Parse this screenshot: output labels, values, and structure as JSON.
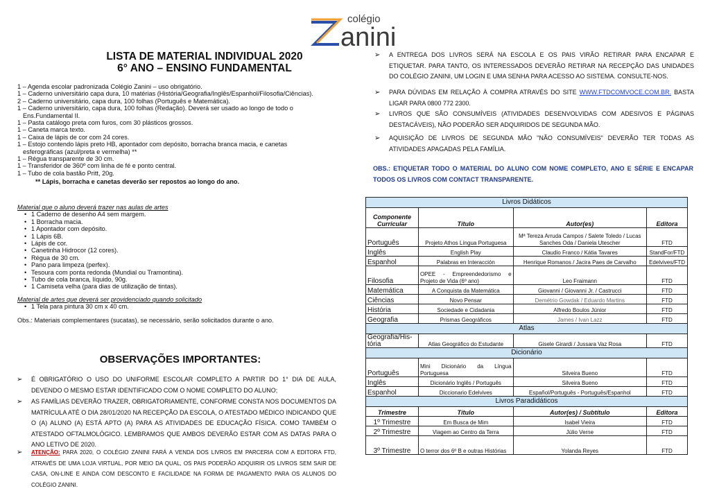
{
  "logo": {
    "top": "colégio",
    "main": "zanini",
    "colors": {
      "orange": "#f0a030",
      "blue": "#2a4fa8",
      "text": "#3a3a3a"
    }
  },
  "header": {
    "title1": "LISTA DE MATERIAL INDIVIDUAL 2020",
    "title2": "6° ANO – ENSINO FUNDAMENTAL"
  },
  "materials": [
    "1 – Agenda escolar padronizada Colégio Zanini – uso obrigatório.",
    "1 – Caderno universitário capa dura, 10 matérias (História/Geografia/Inglês/Espanhol/Filosofia/Ciências).",
    "2 – Caderno universitário, capa dura, 100 folhas (Português e Matemática).",
    "1 – Caderno universitário, capa dura, 100 folhas (Redação). Deverá ser usado ao longo de todo o",
    "Ens.Fundamental II.",
    "1 – Pasta catálogo preta com furos, com 30 plásticos grossos.",
    "1 – Caneta marca texto.",
    "1 – Caixa de lápis de cor com 24 cores.",
    "1 – Estojo contendo lápis preto HB, apontador com depósito, borracha branca macia, e canetas",
    "esferográficas (azul/preta e vermelha) **",
    "1 – Régua transparente de 30 cm.",
    "1 – Transferidor de 360º com linha de fé e ponto central.",
    "1 – Tubo de cola bastão Pritt, 20g."
  ],
  "materials_note": "** Lápis, borracha e canetas deverão ser repostos ao longo do ano.",
  "arts": {
    "title": "Material que o aluno deverá trazer nas aulas de artes",
    "items": [
      "1 Caderno de desenho A4 sem margem.",
      "1 Borracha macia.",
      "1 Apontador com depósito.",
      "1 Lápis 6B.",
      "Lápis de cor.",
      "Canetinha Hidrocor (12 cores).",
      "Régua de 30 cm.",
      "Pano para limpeza (perfex).",
      "Tesoura com ponta redonda (Mundial ou Tramontina).",
      "Tubo de cola branca, líquido, 90g.",
      "1 Camiseta velha (para dias de utilização de tintas)."
    ],
    "title2": "Material de artes que deverá ser providenciado quando solicitado",
    "items2": [
      "1 Tela para pintura 30 cm x 40 cm."
    ],
    "obs": "Obs.: Materiais complementares (sucatas), se necessário, serão solicitados durante o ano."
  },
  "observations": {
    "title": "OBSERVAÇÕES IMPORTANTES:",
    "items": [
      "É obrigatório o uso do uniforme escolar completo a partir do 1° dia de aula, devendo o mesmo estar identificado com o nome completo do aluno;",
      "As famílias deverão trazer, obrigatoriamente, conforme consta nos documentos da matrícula até o dia 28/01/2020 na recepção da Escola, o atestado médico indicando que o (a) aluno (a) está apto (a) para as atividades de Educação Física. Como também o atestado oftalmológico. Lembramos que ambos deverão estar com as datas para o ano letivo de 2020."
    ],
    "attention_label": "Atenção:",
    "attention_text": " Para 2020, o Colégio Zanini fará a venda dos livros em parceria com a Editora FTD, através de uma loja virtual, por meio da qual, os pais poderão adquirir os livros sem sair de casa, on-line e ainda com desconto e facilidade na forma de pagamento para os alunos do Colégio Zanini."
  },
  "right": {
    "item1": "A entrega dos livros será na escola e os pais virão retirar para encapar e etiquetar. Para tanto, os interessados deverão retirar na recepção das unidades do Colégio Zanini, um login e uma senha para acesso ao sistema. Consulte-nos.",
    "item2_pre": "Para dúvidas em relação à compra através do site ",
    "item2_link": "www.ftdcomvoce.com.br.",
    "item2_post": " basta ligar para 0800 772 2300.",
    "item3": "Livros que são consumíveis (atividades desenvolvidas com adesivos e páginas destacáveis), não poderão ser adquiridos de segunda mão.",
    "item4": "Aquisição de livros de segunda mão \"não consumíveis\" deverão ter todas as atividades apagadas pela família.",
    "obs": "Obs.: Etiquetar todo o material do aluno com nome completo, ano e série e encapar todos os livros com contact transparente."
  },
  "table": {
    "sections": [
      {
        "title": "Livros Didáticos",
        "header": [
          "Componente Curricular",
          "Título",
          "Autor(es)",
          "Editora"
        ],
        "rows": [
          [
            "Português",
            "Projeto Athos Língua Portuguesa",
            "Mª Tereza Arruda Campos / Salete Toledo / Lucas Sanches Oda / Daniela Utescher",
            "FTD"
          ],
          [
            "Inglês",
            "English Play",
            "Claudio Franco / Kátia Tavares",
            "StandFor/FTD"
          ],
          [
            "Espanhol",
            "Palabras en Interacción",
            "Henrique Romanos / Jacira Paes de Carvalho",
            "Edelvives/FTD"
          ],
          [
            "Filosofia",
            "OPEE - Empreendedorismo e Projeto de Vida (6º ano)",
            "Leo Fraimann",
            "FTD"
          ],
          [
            "Matemática",
            "A Conquista da Matemática",
            "Giovanni / Giovanni Jr. / Castrucci",
            "FTD"
          ],
          [
            "Ciências",
            "Novo Pensar",
            "Demétrio Gowdak / Eduardo Martins",
            "FTD"
          ],
          [
            "História",
            "Sociedade e Cidadania",
            "Alfredo Boulos Júnior",
            "FTD"
          ],
          [
            "Geografia",
            "Prismas Geográficos",
            "James / Ivan Lazz",
            "FTD"
          ]
        ]
      },
      {
        "title": "Atlas",
        "rows": [
          [
            "Geografia/His-tória",
            "Atlas Geográfico do Estudante",
            "Gisele Girardi / Jussara Vaz Rosa",
            "FTD"
          ]
        ]
      },
      {
        "title": "Dicionário",
        "rows": [
          [
            "Português",
            "Mini Dicionário da Língua Portuguesa",
            "Silveira Bueno",
            "FTD"
          ],
          [
            "Inglês",
            "Dicionário Inglês / Português",
            "Silveira Bueno",
            "FTD"
          ],
          [
            "Espanhol",
            "Diccionario Edelvives",
            "Español/Português - Português/Espanhol",
            "FTD"
          ]
        ]
      },
      {
        "title": "Livros Paradidáticos",
        "header": [
          "Trimestre",
          "Título",
          "Autor(es) / Subtítulo",
          "Editora"
        ],
        "rows": [
          [
            "1º Trimestre",
            "Em Busca de Mim",
            "Isabel Vieira",
            "FTD"
          ],
          [
            "2º Trimestre",
            "Viagem ao Centro da Terra",
            "Júlio Verne",
            "FTD"
          ],
          [
            "3º Trimestre",
            "O terror dos 6º B e outras Histórias",
            "Yolanda Reyes",
            "FTD"
          ]
        ]
      }
    ]
  }
}
